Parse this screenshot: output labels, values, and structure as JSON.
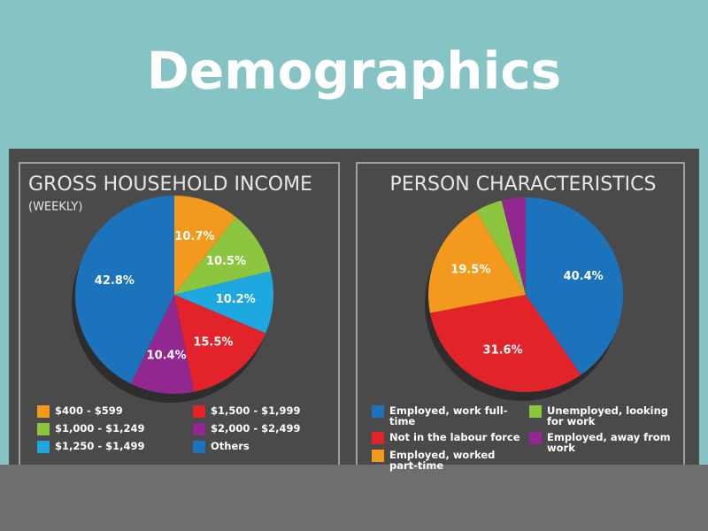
{
  "header": {
    "title": "Demographics"
  },
  "chart_data": [
    {
      "type": "pie",
      "title": "GROSS HOUSEHOLD INCOME",
      "subtitle": "(WEEKLY)",
      "categories": [
        "$400 - $599",
        "$1,000 - $1,249",
        "$1,250 - $1,499",
        "$1,500 - $1,999",
        "$2,000 - $2,499",
        "Others"
      ],
      "values": [
        10.7,
        10.5,
        10.2,
        15.5,
        10.4,
        42.8
      ],
      "value_labels": [
        "10.7%",
        "10.5%",
        "10.2%",
        "15.5%",
        "10.4%",
        "42.8%"
      ],
      "colors": [
        "#f39a1e",
        "#8cc63f",
        "#1da8e0",
        "#e2232a",
        "#92278f",
        "#1b74bb"
      ]
    },
    {
      "type": "pie",
      "title": "PERSON CHARACTERISTICS",
      "categories": [
        "Employed, work full-time",
        "Not in the labour force",
        "Employed, worked part-time",
        "Unemployed, looking for work",
        "Employed, away from work"
      ],
      "values": [
        40.4,
        31.6,
        19.5,
        4.5,
        4
      ],
      "value_labels": [
        "40.4%",
        "31.6%",
        "19.5%",
        null,
        null
      ],
      "colors": [
        "#1b74bb",
        "#e2232a",
        "#f39a1e",
        "#8cc63f",
        "#92278f"
      ]
    }
  ]
}
